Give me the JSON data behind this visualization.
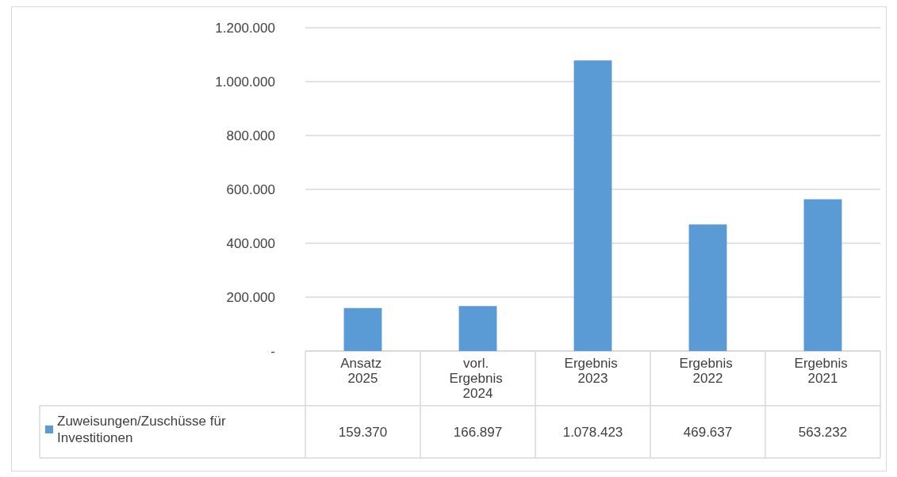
{
  "chart_data": {
    "type": "bar",
    "categories": [
      "Ansatz 2025",
      "vorl. Ergebnis 2024",
      "Ergebnis 2023",
      "Ergebnis 2022",
      "Ergebnis 2021"
    ],
    "series": [
      {
        "name": "Zuweisungen/Zuschüsse für Investitionen",
        "color": "#5b9bd5",
        "values": [
          159370,
          166897,
          1078423,
          469637,
          563232
        ],
        "value_labels": [
          "159.370",
          "166.897",
          "1.078.423",
          "469.637",
          "563.232"
        ]
      }
    ],
    "ylim": [
      0,
      1200000
    ],
    "yticks": [
      {
        "value": 0,
        "label": "-"
      },
      {
        "value": 200000,
        "label": "200.000"
      },
      {
        "value": 400000,
        "label": "400.000"
      },
      {
        "value": 600000,
        "label": "600.000"
      },
      {
        "value": 800000,
        "label": "800.000"
      },
      {
        "value": 1000000,
        "label": "1.000.000"
      },
      {
        "value": 1200000,
        "label": "1.200.000"
      }
    ],
    "grid": "y",
    "legend": "bottom left"
  }
}
